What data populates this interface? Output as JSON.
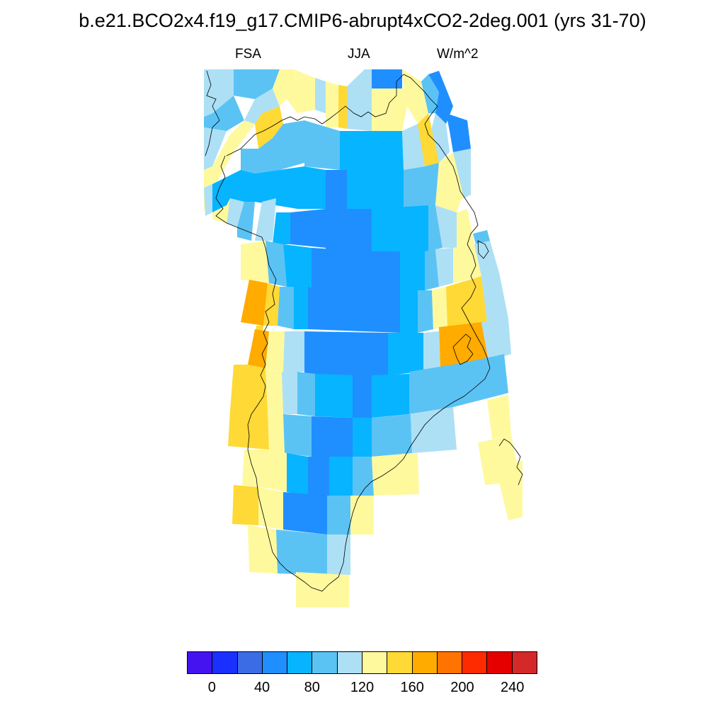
{
  "title": "b.e21.BCO2x4.f19_g17.CMIP6-abrupt4xCO2-2deg.001 (yrs 31-70)",
  "subtitle": {
    "left": "FSA",
    "center": "JJA",
    "right": "W/m^2"
  },
  "colors": {
    "levels": [
      "#4513f0",
      "#1a30ff",
      "#3b6ce6",
      "#1f8fff",
      "#07b4ff",
      "#5bc3f4",
      "#ade0f5",
      "#fff99e",
      "#ffd935",
      "#ffab00",
      "#ff7400",
      "#ff2b00",
      "#e50000",
      "#d42929"
    ]
  },
  "colorbar": {
    "labels": [
      "0",
      "40",
      "80",
      "120",
      "160",
      "200",
      "240"
    ]
  },
  "map": {
    "region": "Greenland",
    "field": "FSA",
    "season": "JJA",
    "units": "W/m^2"
  }
}
